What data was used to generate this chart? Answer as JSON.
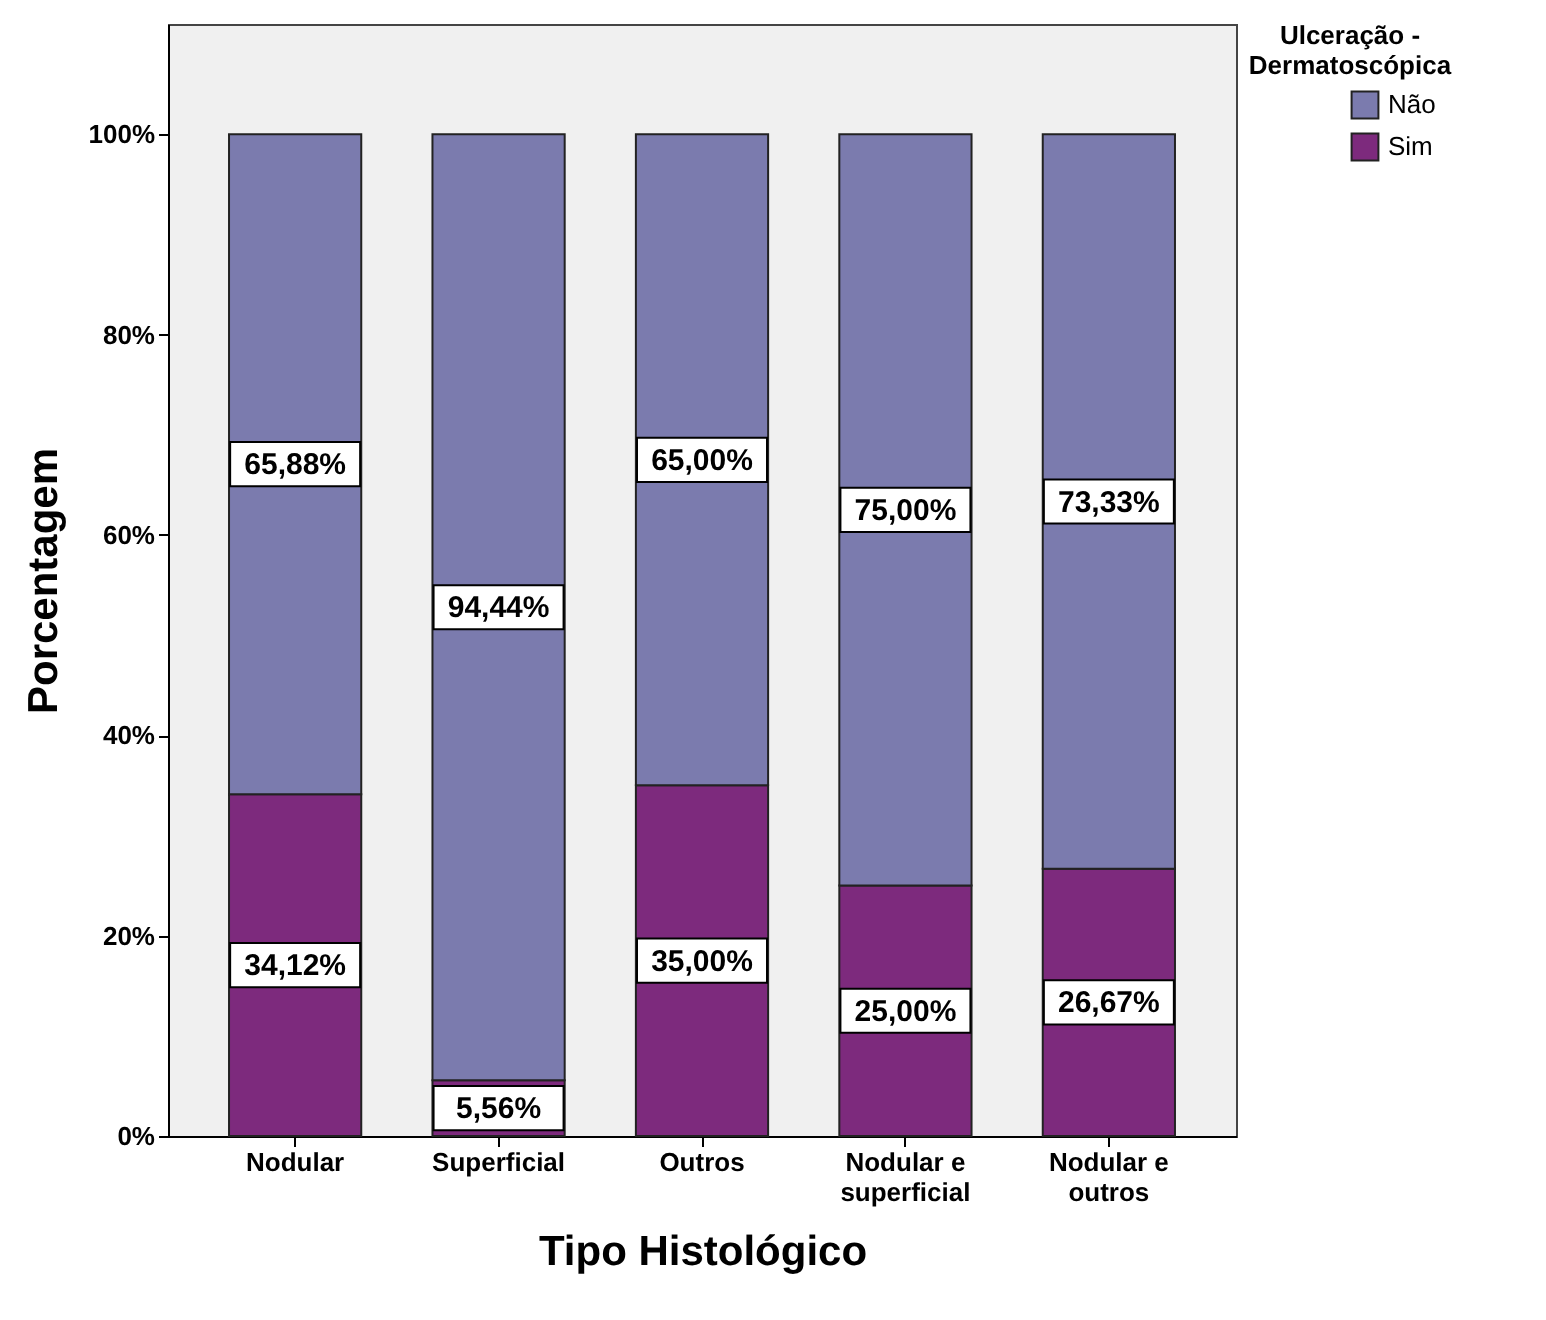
{
  "chart_data": {
    "type": "bar",
    "stacked": true,
    "xlabel": "Tipo Histológico",
    "ylabel": "Porcentagem",
    "legend_title": "Ulceração - Dermatoscópica",
    "legend": "top right",
    "grid": false,
    "categories": [
      "Nodular",
      "Superficial",
      "Outros",
      "Nodular e superficial",
      "Nodular e outros"
    ],
    "series": [
      {
        "name": "Sim",
        "color": "#7d2a7d",
        "values": [
          34.12,
          5.56,
          35.0,
          25.0,
          26.67
        ],
        "value_labels": [
          "34,12%",
          "5,56%",
          "35,00%",
          "25,00%",
          "26,67%"
        ]
      },
      {
        "name": "Não",
        "color": "#7b7bae",
        "values": [
          65.88,
          94.44,
          65.0,
          75.0,
          73.33
        ],
        "value_labels": [
          "65,88%",
          "94,44%",
          "65,00%",
          "75,00%",
          "73,33%"
        ]
      }
    ],
    "ylim": [
      0,
      111
    ],
    "yticks": [
      {
        "value": 0,
        "label": "0%"
      },
      {
        "value": 20,
        "label": "20%"
      },
      {
        "value": 40,
        "label": "40%"
      },
      {
        "value": 60,
        "label": "60%"
      },
      {
        "value": 80,
        "label": "80%"
      },
      {
        "value": 100,
        "label": "100%"
      }
    ]
  }
}
